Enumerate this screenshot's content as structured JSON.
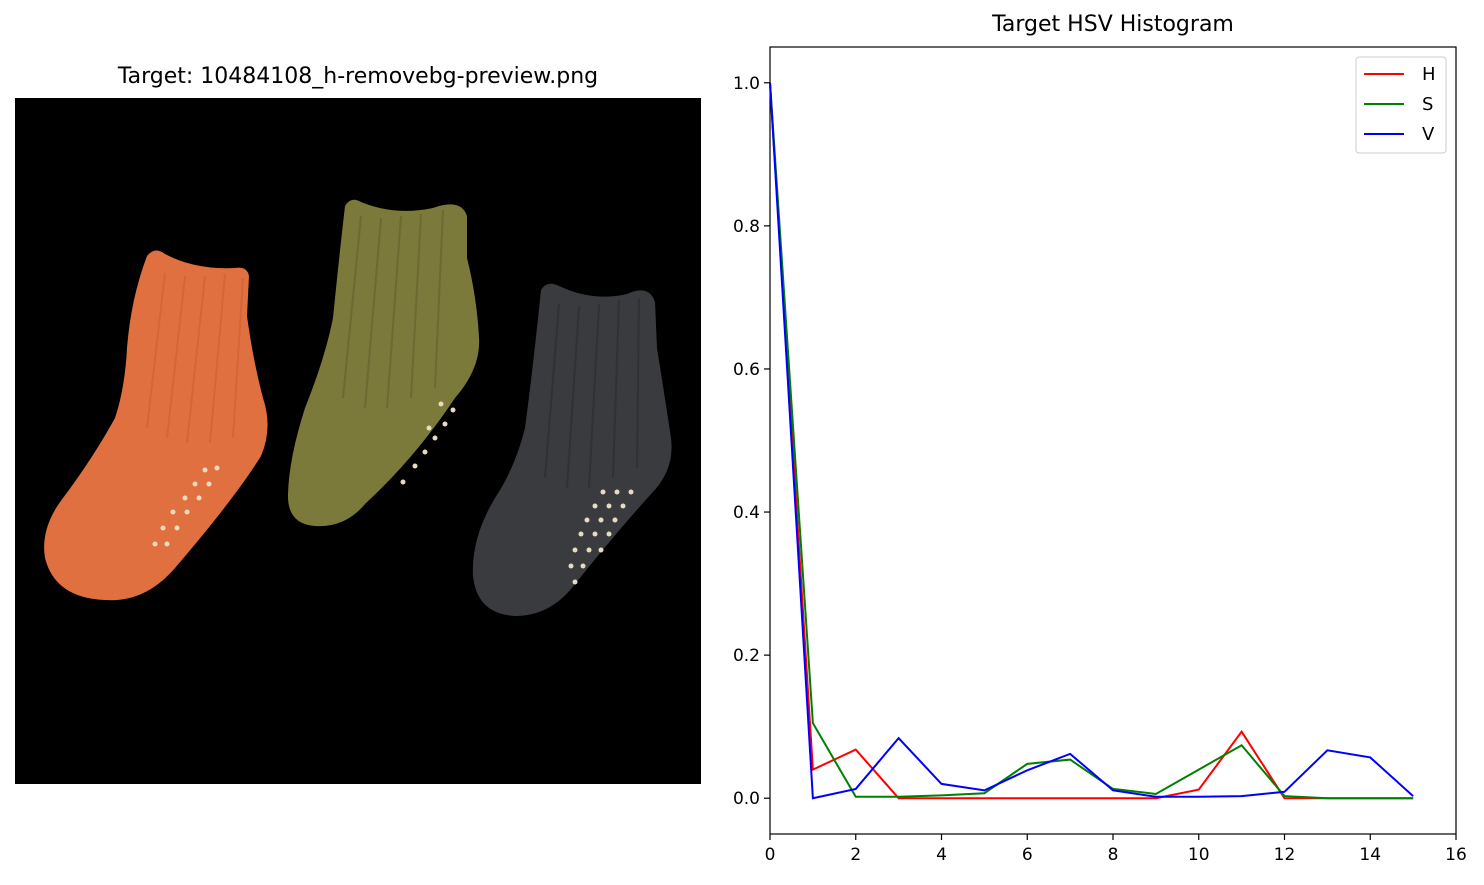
{
  "image_panel": {
    "title": "Target: 10484108_h-removebg-preview.png",
    "sock_colors": [
      "#e0703f",
      "#7b7a3a",
      "#3a3b3f"
    ]
  },
  "chart_data": {
    "type": "line",
    "title": "Target HSV Histogram",
    "xlabel": "",
    "ylabel": "",
    "xlim": [
      0,
      16
    ],
    "ylim": [
      -0.05,
      1.05
    ],
    "x_ticks": [
      0,
      2,
      4,
      6,
      8,
      10,
      12,
      14,
      16
    ],
    "y_ticks": [
      0.0,
      0.2,
      0.4,
      0.6,
      0.8,
      1.0
    ],
    "x_tick_labels": [
      "0",
      "2",
      "4",
      "6",
      "8",
      "10",
      "12",
      "14",
      "16"
    ],
    "y_tick_labels": [
      "0.0",
      "0.2",
      "0.4",
      "0.6",
      "0.8",
      "1.0"
    ],
    "x": [
      0,
      1,
      2,
      3,
      4,
      5,
      6,
      7,
      8,
      9,
      10,
      11,
      12,
      13,
      14,
      15
    ],
    "series": [
      {
        "name": "H",
        "color": "#ff0000",
        "values": [
          1.0,
          0.04,
          0.068,
          0.0,
          0.0,
          0.0,
          0.0,
          0.0,
          0.0,
          0.0,
          0.012,
          0.093,
          0.0,
          0.0,
          0.0,
          0.0
        ]
      },
      {
        "name": "S",
        "color": "#008000",
        "values": [
          1.0,
          0.105,
          0.002,
          0.002,
          0.004,
          0.007,
          0.048,
          0.054,
          0.013,
          0.006,
          0.04,
          0.074,
          0.003,
          0.0,
          0.0,
          0.0
        ]
      },
      {
        "name": "V",
        "color": "#0000ff",
        "values": [
          1.0,
          0.0,
          0.013,
          0.084,
          0.02,
          0.011,
          0.039,
          0.062,
          0.011,
          0.002,
          0.002,
          0.003,
          0.009,
          0.067,
          0.057,
          0.003
        ]
      }
    ],
    "grid": false,
    "legend_position": "top-right"
  }
}
